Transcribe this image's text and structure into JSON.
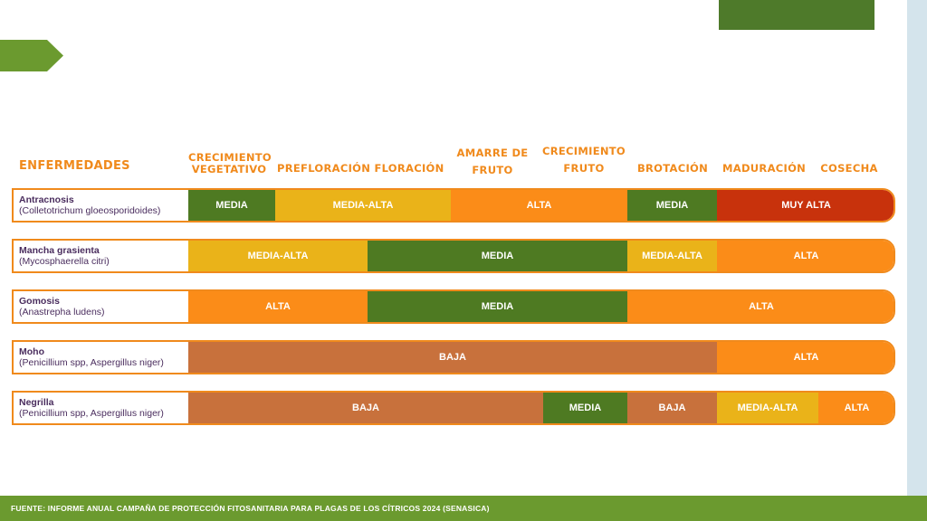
{
  "headers": {
    "enfermedades": "ENFERMEDADES",
    "crecimiento_vegetativo_1": "CRECIMIENTO",
    "crecimiento_vegetativo_2": "VEGETATIVO",
    "prefloracion": "PREFLORACIÓN",
    "floracion": "FLORACIÓN",
    "amarre_1": "AMARRE DE",
    "amarre_2": "FRUTO",
    "crecimiento_fruto_1": "CRECIMIENTO",
    "crecimiento_fruto_2": "FRUTO",
    "brotacion": "BROTACIÓN",
    "maduracion": "MADURACIÓN",
    "cosecha": "COSECHA"
  },
  "rows": [
    {
      "name": "Antracnosis",
      "scientific": "(Colletotrichum gloeosporidoides)",
      "segments": [
        "MEDIA",
        "MEDIA-ALTA",
        "ALTA",
        "MEDIA",
        "MUY ALTA"
      ]
    },
    {
      "name": "Mancha grasienta",
      "scientific": "(Mycosphaerella citri)",
      "segments": [
        "MEDIA-ALTA",
        "MEDIA",
        "MEDIA-ALTA",
        "ALTA"
      ]
    },
    {
      "name": "Gomosis",
      "scientific": "(Anastrepha ludens)",
      "segments": [
        "ALTA",
        "MEDIA",
        "ALTA"
      ]
    },
    {
      "name": "Moho",
      "scientific": "(Penicillium spp, Aspergillus niger)",
      "segments": [
        "BAJA",
        "ALTA"
      ]
    },
    {
      "name": "Negrilla",
      "scientific": "(Penicillium spp, Aspergillus niger)",
      "segments": [
        "BAJA",
        "MEDIA",
        "BAJA",
        "MEDIA-ALTA",
        "ALTA"
      ]
    }
  ],
  "colors": {
    "media": "#4e7a22",
    "media_alta": "#eab319",
    "alta": "#fb8c18",
    "muy_alta": "#c8320c",
    "baja": "#c8713c",
    "accent": "#f08a1c"
  },
  "footer": "FUENTE: INFORME ANUAL CAMPAÑA DE PROTECCIÓN FITOSANITARIA PARA PLAGAS DE LOS CÍTRICOS 2024 (SENASICA)"
}
